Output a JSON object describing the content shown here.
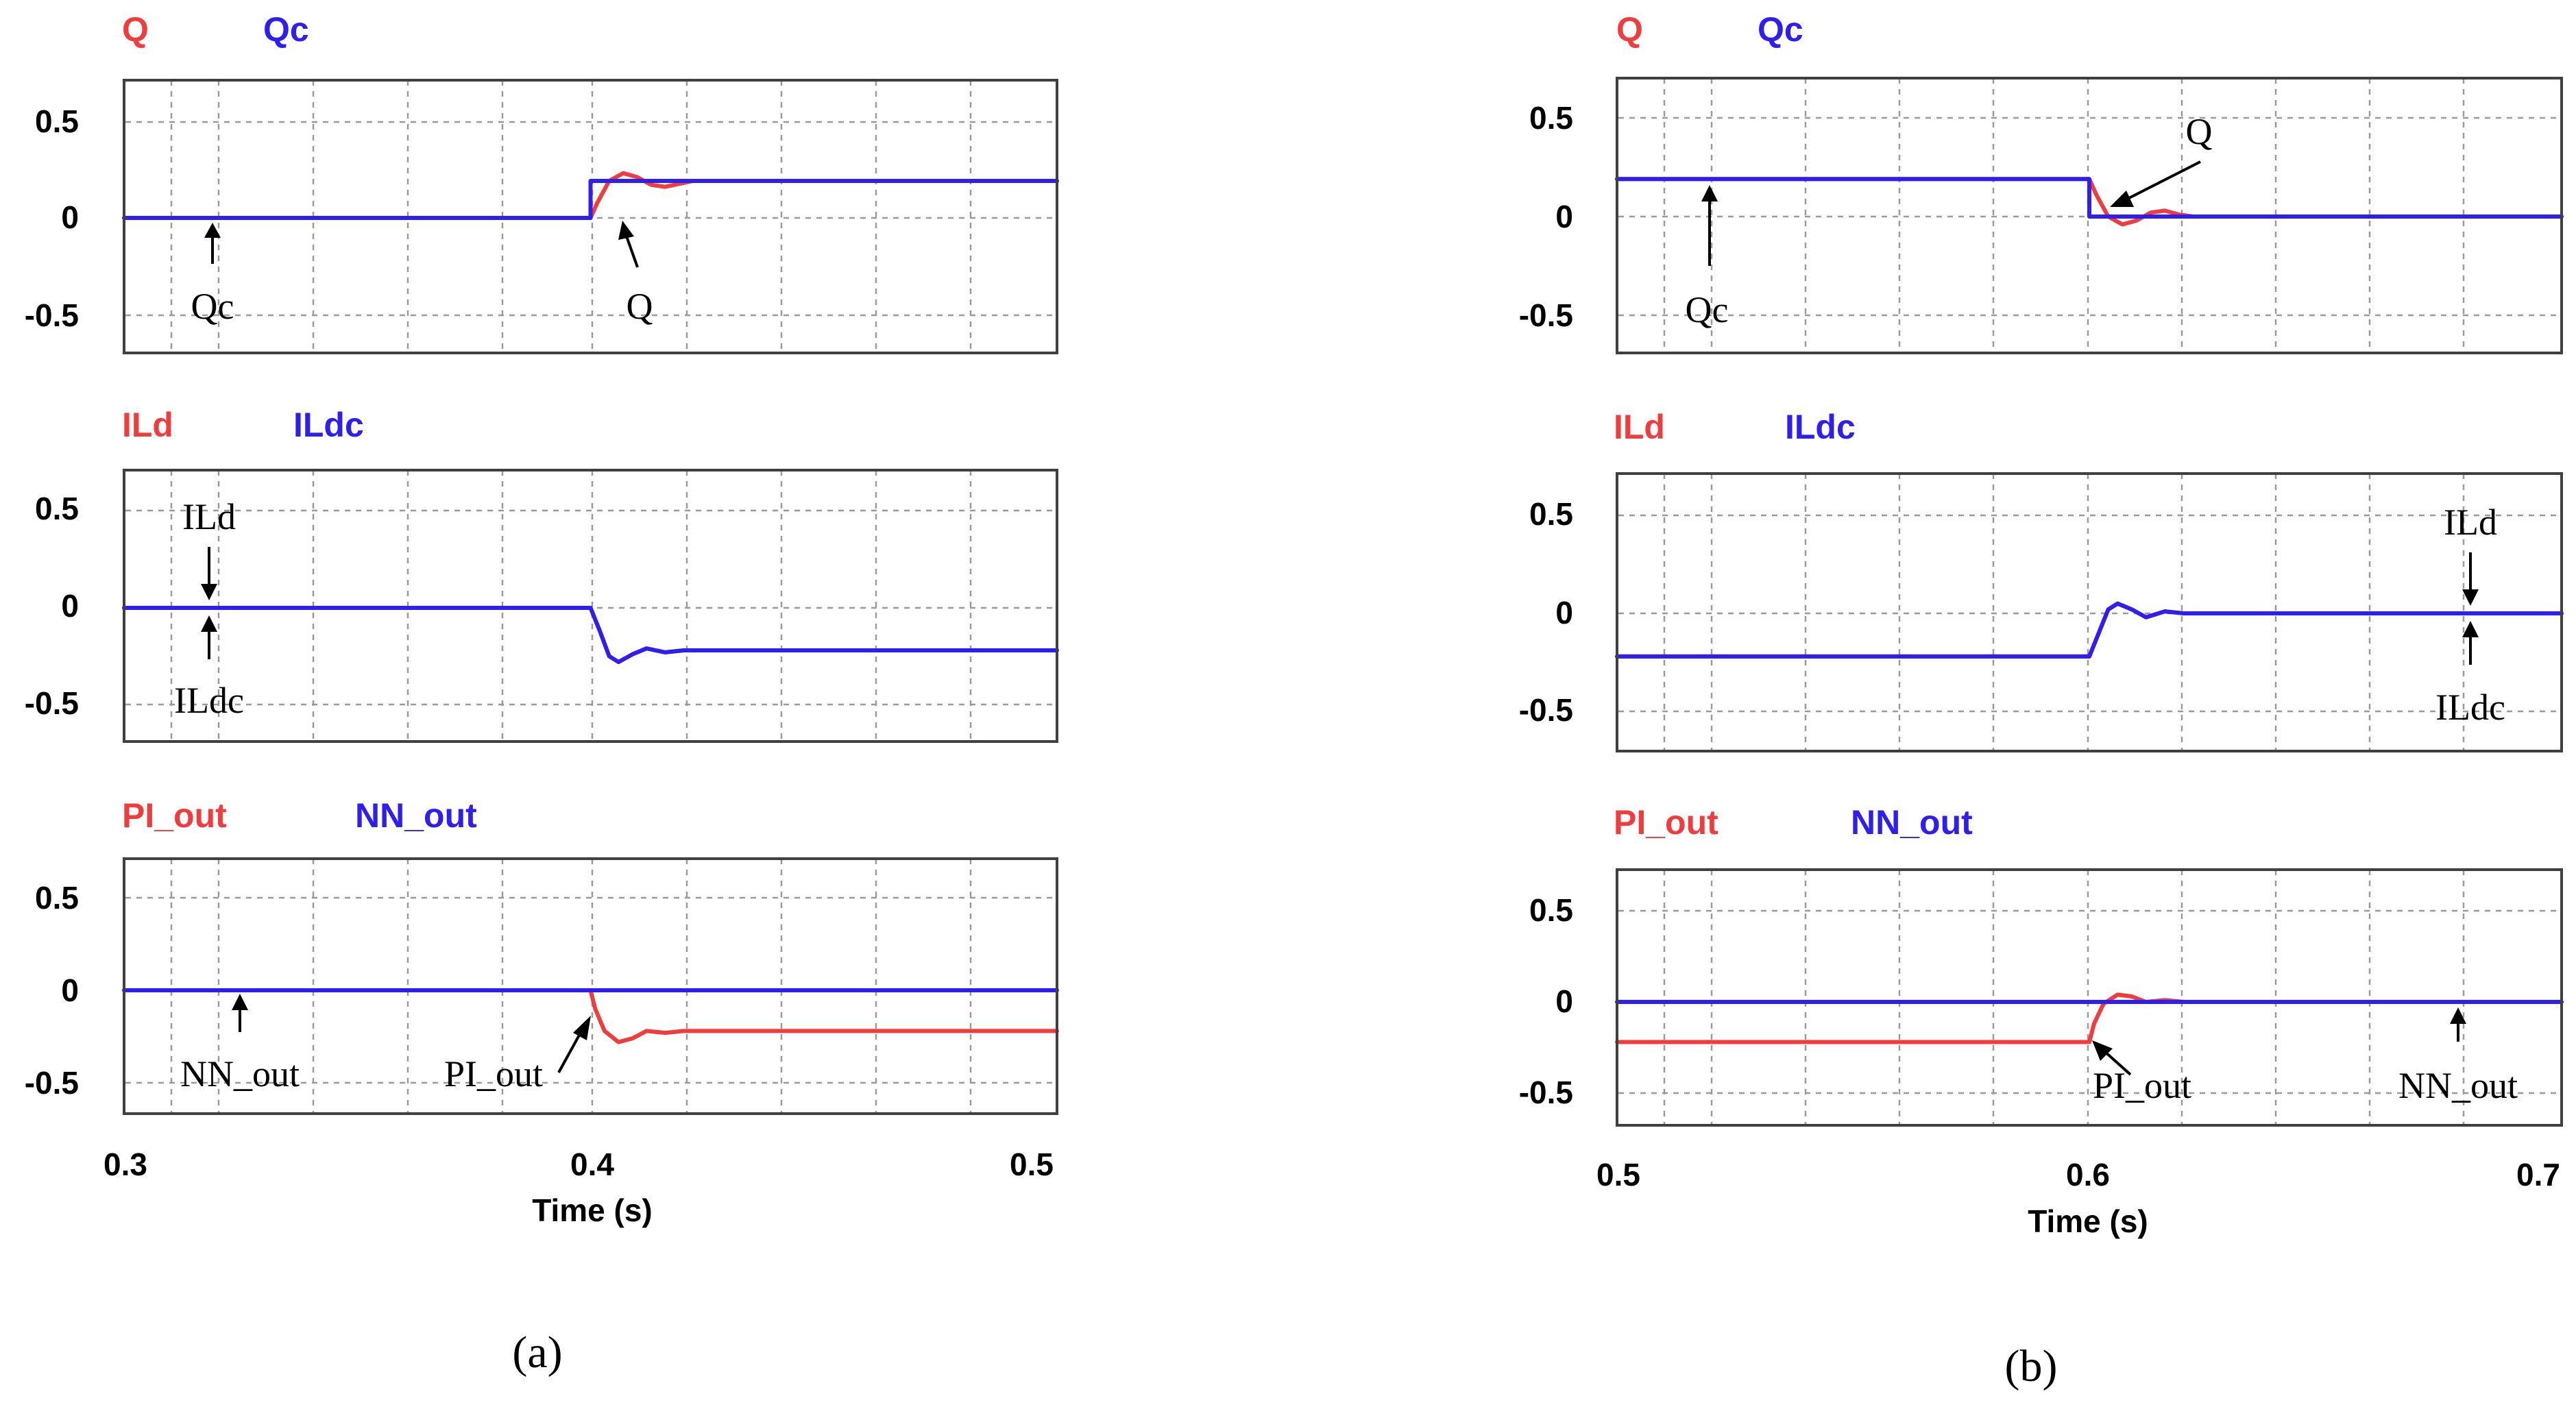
{
  "colors": {
    "series_a": "#f03c3c",
    "series_b": "#2f1ef0"
  },
  "chart_data": [
    {
      "panel": "a",
      "row": 1,
      "type": "line",
      "legend": [
        "Q",
        "Qc"
      ],
      "xlim": [
        0.3,
        0.5
      ],
      "ylim": [
        -0.7,
        0.7
      ],
      "yticks": [
        0.5,
        0,
        -0.5
      ],
      "series": [
        {
          "name": "Q",
          "color": "#f03c3c",
          "x": [
            0.3,
            0.4,
            0.4015,
            0.404,
            0.407,
            0.41,
            0.413,
            0.416,
            0.419,
            0.422,
            0.5
          ],
          "y": [
            0,
            0,
            0.08,
            0.19,
            0.23,
            0.21,
            0.17,
            0.16,
            0.175,
            0.19,
            0.19
          ]
        },
        {
          "name": "Qc",
          "color": "#2f1ef0",
          "x": [
            0.3,
            0.4,
            0.4,
            0.5
          ],
          "y": [
            0,
            0,
            0.19,
            0.19
          ]
        }
      ],
      "annotations": [
        {
          "text": "Qc",
          "x": 0.32,
          "y": 0
        },
        {
          "text": "Q",
          "x": 0.406,
          "y": 0.17
        }
      ]
    },
    {
      "panel": "a",
      "row": 2,
      "type": "line",
      "legend": [
        "ILd",
        "ILdc"
      ],
      "xlim": [
        0.3,
        0.5
      ],
      "ylim": [
        -0.7,
        0.7
      ],
      "yticks": [
        0.5,
        0,
        -0.5
      ],
      "series": [
        {
          "name": "ILd",
          "color": "#f03c3c",
          "x": [
            0.3,
            0.4,
            0.402,
            0.404,
            0.406,
            0.409,
            0.412,
            0.416,
            0.42,
            0.5
          ],
          "y": [
            0,
            0,
            -0.12,
            -0.25,
            -0.28,
            -0.24,
            -0.21,
            -0.23,
            -0.22,
            -0.22
          ]
        },
        {
          "name": "ILdc",
          "color": "#2f1ef0",
          "x": [
            0.3,
            0.4,
            0.402,
            0.404,
            0.406,
            0.409,
            0.412,
            0.416,
            0.42,
            0.5
          ],
          "y": [
            0,
            0,
            -0.12,
            -0.25,
            -0.28,
            -0.24,
            -0.21,
            -0.23,
            -0.22,
            -0.22
          ]
        }
      ],
      "annotations": [
        {
          "text": "ILd",
          "x": 0.32,
          "y": 0
        },
        {
          "text": "ILdc",
          "x": 0.32,
          "y": 0
        }
      ]
    },
    {
      "panel": "a",
      "row": 3,
      "type": "line",
      "legend": [
        "PI_out",
        "NN_out"
      ],
      "xlim": [
        0.3,
        0.5
      ],
      "ylim": [
        -0.7,
        0.7
      ],
      "yticks": [
        0.5,
        0,
        -0.5
      ],
      "xticks": [
        "0.3",
        "0.4",
        "0.5"
      ],
      "xlabel": "Time (s)",
      "series": [
        {
          "name": "PI_out",
          "color": "#f03c3c",
          "x": [
            0.3,
            0.4,
            0.401,
            0.403,
            0.406,
            0.409,
            0.412,
            0.416,
            0.42,
            0.5
          ],
          "y": [
            0,
            0,
            -0.1,
            -0.22,
            -0.28,
            -0.26,
            -0.22,
            -0.23,
            -0.22,
            -0.22
          ]
        },
        {
          "name": "NN_out",
          "color": "#2f1ef0",
          "x": [
            0.3,
            0.5
          ],
          "y": [
            0,
            0
          ]
        }
      ],
      "annotations": [
        {
          "text": "NN_out",
          "x": 0.325,
          "y": 0
        },
        {
          "text": "PI_out",
          "x": 0.4,
          "y": -0.15
        }
      ]
    },
    {
      "panel": "b",
      "row": 1,
      "type": "line",
      "legend": [
        "Q",
        "Qc"
      ],
      "xlim": [
        0.5,
        0.7
      ],
      "ylim": [
        -0.7,
        0.7
      ],
      "yticks": [
        0.5,
        0,
        -0.5
      ],
      "series": [
        {
          "name": "Q",
          "color": "#f03c3c",
          "x": [
            0.5,
            0.6,
            0.6015,
            0.604,
            0.607,
            0.61,
            0.613,
            0.616,
            0.619,
            0.622,
            0.7
          ],
          "y": [
            0.19,
            0.19,
            0.11,
            0.0,
            -0.04,
            -0.02,
            0.02,
            0.03,
            0.01,
            0.0,
            0.0
          ]
        },
        {
          "name": "Qc",
          "color": "#2f1ef0",
          "x": [
            0.5,
            0.6,
            0.6,
            0.7
          ],
          "y": [
            0.19,
            0.19,
            0,
            0
          ]
        }
      ],
      "annotations": [
        {
          "text": "Qc",
          "x": 0.52,
          "y": 0.19
        },
        {
          "text": "Q",
          "x": 0.605,
          "y": 0.05
        }
      ]
    },
    {
      "panel": "b",
      "row": 2,
      "type": "line",
      "legend": [
        "ILd",
        "ILdc"
      ],
      "xlim": [
        0.5,
        0.7
      ],
      "ylim": [
        -0.7,
        0.7
      ],
      "yticks": [
        0.5,
        0,
        -0.5
      ],
      "series": [
        {
          "name": "ILd",
          "color": "#f03c3c",
          "x": [
            0.5,
            0.6,
            0.602,
            0.604,
            0.606,
            0.609,
            0.612,
            0.616,
            0.62,
            0.7
          ],
          "y": [
            -0.22,
            -0.22,
            -0.1,
            0.02,
            0.05,
            0.02,
            -0.02,
            0.01,
            0,
            0
          ]
        },
        {
          "name": "ILdc",
          "color": "#2f1ef0",
          "x": [
            0.5,
            0.6,
            0.602,
            0.604,
            0.606,
            0.609,
            0.612,
            0.616,
            0.62,
            0.7
          ],
          "y": [
            -0.22,
            -0.22,
            -0.1,
            0.02,
            0.05,
            0.02,
            -0.02,
            0.01,
            0,
            0
          ]
        }
      ],
      "annotations": [
        {
          "text": "ILd",
          "x": 0.68,
          "y": 0
        },
        {
          "text": "ILdc",
          "x": 0.68,
          "y": 0
        }
      ]
    },
    {
      "panel": "b",
      "row": 3,
      "type": "line",
      "legend": [
        "PI_out",
        "NN_out"
      ],
      "xlim": [
        0.5,
        0.7
      ],
      "ylim": [
        -0.7,
        0.7
      ],
      "yticks": [
        0.5,
        0,
        -0.5
      ],
      "xticks": [
        "0.5",
        "0.6",
        "0.7"
      ],
      "xlabel": "Time (s)",
      "series": [
        {
          "name": "PI_out",
          "color": "#f03c3c",
          "x": [
            0.5,
            0.6,
            0.601,
            0.603,
            0.606,
            0.609,
            0.612,
            0.616,
            0.62,
            0.7
          ],
          "y": [
            -0.22,
            -0.22,
            -0.12,
            -0.01,
            0.04,
            0.03,
            0.0,
            0.01,
            0,
            0
          ]
        },
        {
          "name": "NN_out",
          "color": "#2f1ef0",
          "x": [
            0.5,
            0.7
          ],
          "y": [
            0,
            0
          ]
        }
      ],
      "annotations": [
        {
          "text": "PI_out",
          "x": 0.6,
          "y": -0.15
        },
        {
          "text": "NN_out",
          "x": 0.68,
          "y": 0
        }
      ]
    }
  ],
  "captions": {
    "a": "(a)",
    "b": "(b)"
  }
}
